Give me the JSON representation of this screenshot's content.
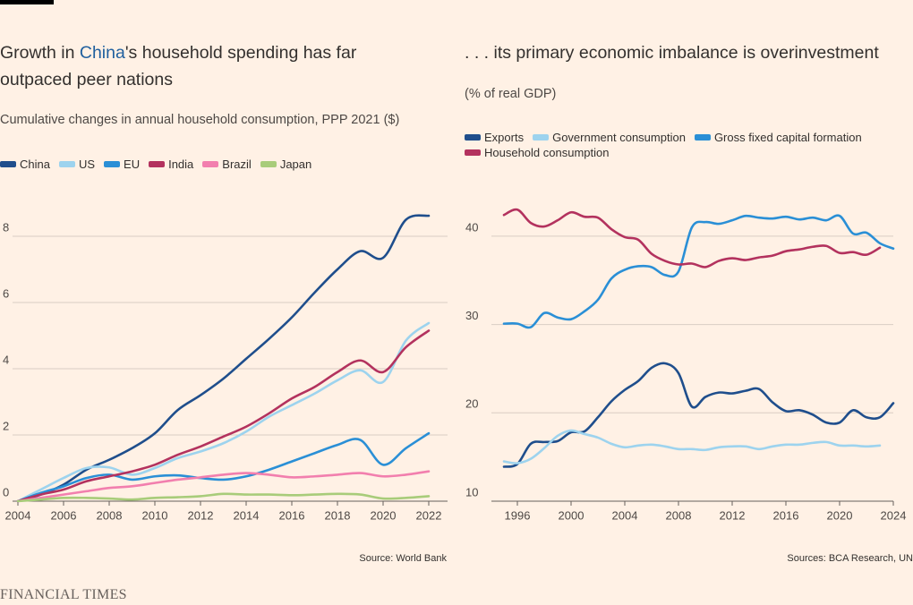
{
  "chart_data": [
    {
      "type": "line",
      "title": "Growth in China's household spending has far outpaced peer nations",
      "title_highlight": "China",
      "subtitle": "Cumulative changes in annual household consumption, PPP 2021 ($)",
      "x": [
        2004,
        2005,
        2006,
        2007,
        2008,
        2009,
        2010,
        2011,
        2012,
        2013,
        2014,
        2015,
        2016,
        2017,
        2018,
        2019,
        2020,
        2021,
        2022
      ],
      "series": [
        {
          "name": "China",
          "color": "#1f4e8c",
          "values": [
            0,
            0.2,
            0.5,
            0.95,
            1.25,
            1.6,
            2.05,
            2.75,
            3.2,
            3.7,
            4.3,
            4.9,
            5.55,
            6.3,
            7.0,
            7.55,
            7.35,
            8.5,
            8.62
          ]
        },
        {
          "name": "US",
          "color": "#9dd3ee",
          "values": [
            0,
            0.35,
            0.7,
            1.0,
            1.02,
            0.8,
            1.0,
            1.3,
            1.5,
            1.75,
            2.1,
            2.55,
            2.9,
            3.25,
            3.65,
            3.95,
            3.6,
            4.85,
            5.38
          ]
        },
        {
          "name": "EU",
          "color": "#2a8fd6",
          "values": [
            0,
            0.25,
            0.45,
            0.7,
            0.8,
            0.65,
            0.75,
            0.78,
            0.7,
            0.65,
            0.75,
            0.95,
            1.2,
            1.45,
            1.7,
            1.85,
            1.1,
            1.6,
            2.05
          ]
        },
        {
          "name": "India",
          "color": "#b3325e",
          "values": [
            0,
            0.2,
            0.35,
            0.6,
            0.75,
            0.9,
            1.1,
            1.4,
            1.65,
            1.95,
            2.25,
            2.65,
            3.1,
            3.45,
            3.9,
            4.25,
            3.9,
            4.65,
            5.15
          ]
        },
        {
          "name": "Brazil",
          "color": "#f27fae",
          "values": [
            0,
            0.1,
            0.2,
            0.3,
            0.4,
            0.45,
            0.55,
            0.65,
            0.72,
            0.8,
            0.85,
            0.8,
            0.72,
            0.75,
            0.8,
            0.85,
            0.75,
            0.8,
            0.9
          ]
        },
        {
          "name": "Japan",
          "color": "#a8cc7a",
          "values": [
            0,
            0.05,
            0.1,
            0.1,
            0.08,
            0.05,
            0.1,
            0.12,
            0.15,
            0.22,
            0.2,
            0.2,
            0.18,
            0.2,
            0.22,
            0.2,
            0.08,
            0.1,
            0.15
          ]
        }
      ],
      "xlim": [
        2004,
        2022
      ],
      "xticks": [
        2004,
        2006,
        2008,
        2010,
        2012,
        2014,
        2016,
        2018,
        2020,
        2022
      ],
      "ylim": [
        0,
        9
      ],
      "yticks": [
        0,
        2,
        4,
        6,
        8
      ],
      "grid": true,
      "source": "Source: World Bank"
    },
    {
      "type": "line",
      "title": ". . . its primary economic imbalance is overinvestment",
      "subtitle": "(% of real GDP)",
      "x": [
        1995,
        1996,
        1997,
        1998,
        1999,
        2000,
        2001,
        2002,
        2003,
        2004,
        2005,
        2006,
        2007,
        2008,
        2009,
        2010,
        2011,
        2012,
        2013,
        2014,
        2015,
        2016,
        2017,
        2018,
        2019,
        2020,
        2021,
        2022,
        2023,
        2024
      ],
      "series": [
        {
          "name": "Exports",
          "color": "#1f4e8c",
          "values": [
            13.9,
            14.2,
            16.5,
            16.7,
            16.8,
            17.8,
            17.9,
            19.5,
            21.3,
            22.6,
            23.6,
            25.1,
            25.6,
            24.5,
            20.7,
            21.8,
            22.3,
            22.2,
            22.5,
            22.7,
            21.2,
            20.2,
            20.3,
            19.8,
            18.9,
            18.9,
            20.3,
            19.5,
            19.5,
            21.1
          ]
        },
        {
          "name": "Government consumption",
          "color": "#9dd3ee",
          "values": [
            14.5,
            14.3,
            14.8,
            16.0,
            17.4,
            18.0,
            17.6,
            17.2,
            16.5,
            16.1,
            16.3,
            16.4,
            16.2,
            15.9,
            15.9,
            15.8,
            16.1,
            16.2,
            16.2,
            15.9,
            16.2,
            16.4,
            16.4,
            16.6,
            16.7,
            16.3,
            16.3,
            16.2,
            16.3,
            null
          ]
        },
        {
          "name": "Gross fixed capital formation",
          "color": "#2a8fd6",
          "values": [
            30.1,
            30.1,
            29.7,
            31.3,
            30.8,
            30.6,
            31.5,
            32.8,
            35.2,
            36.2,
            36.6,
            36.5,
            35.6,
            36.0,
            41.0,
            41.6,
            41.4,
            41.8,
            42.3,
            42.1,
            42.0,
            42.2,
            41.9,
            42.1,
            41.8,
            42.3,
            40.3,
            40.4,
            39.2,
            38.6
          ]
        },
        {
          "name": "Household consumption",
          "color": "#b3325e",
          "values": [
            42.4,
            43.0,
            41.5,
            41.1,
            41.8,
            42.7,
            42.2,
            42.1,
            40.8,
            39.9,
            39.6,
            38.0,
            37.2,
            36.8,
            36.9,
            36.5,
            37.2,
            37.5,
            37.3,
            37.6,
            37.8,
            38.3,
            38.5,
            38.8,
            38.9,
            38.1,
            38.2,
            37.9,
            38.7,
            null
          ]
        }
      ],
      "xlim": [
        1994,
        2024
      ],
      "xticks": [
        1996,
        2000,
        2004,
        2008,
        2012,
        2016,
        2020,
        2024
      ],
      "ylim": [
        10,
        44.5
      ],
      "yticks": [
        10,
        20,
        30,
        40
      ],
      "grid": true,
      "source": "Sources: BCA Research, UN"
    }
  ],
  "brand": "FINANCIAL TIMES"
}
